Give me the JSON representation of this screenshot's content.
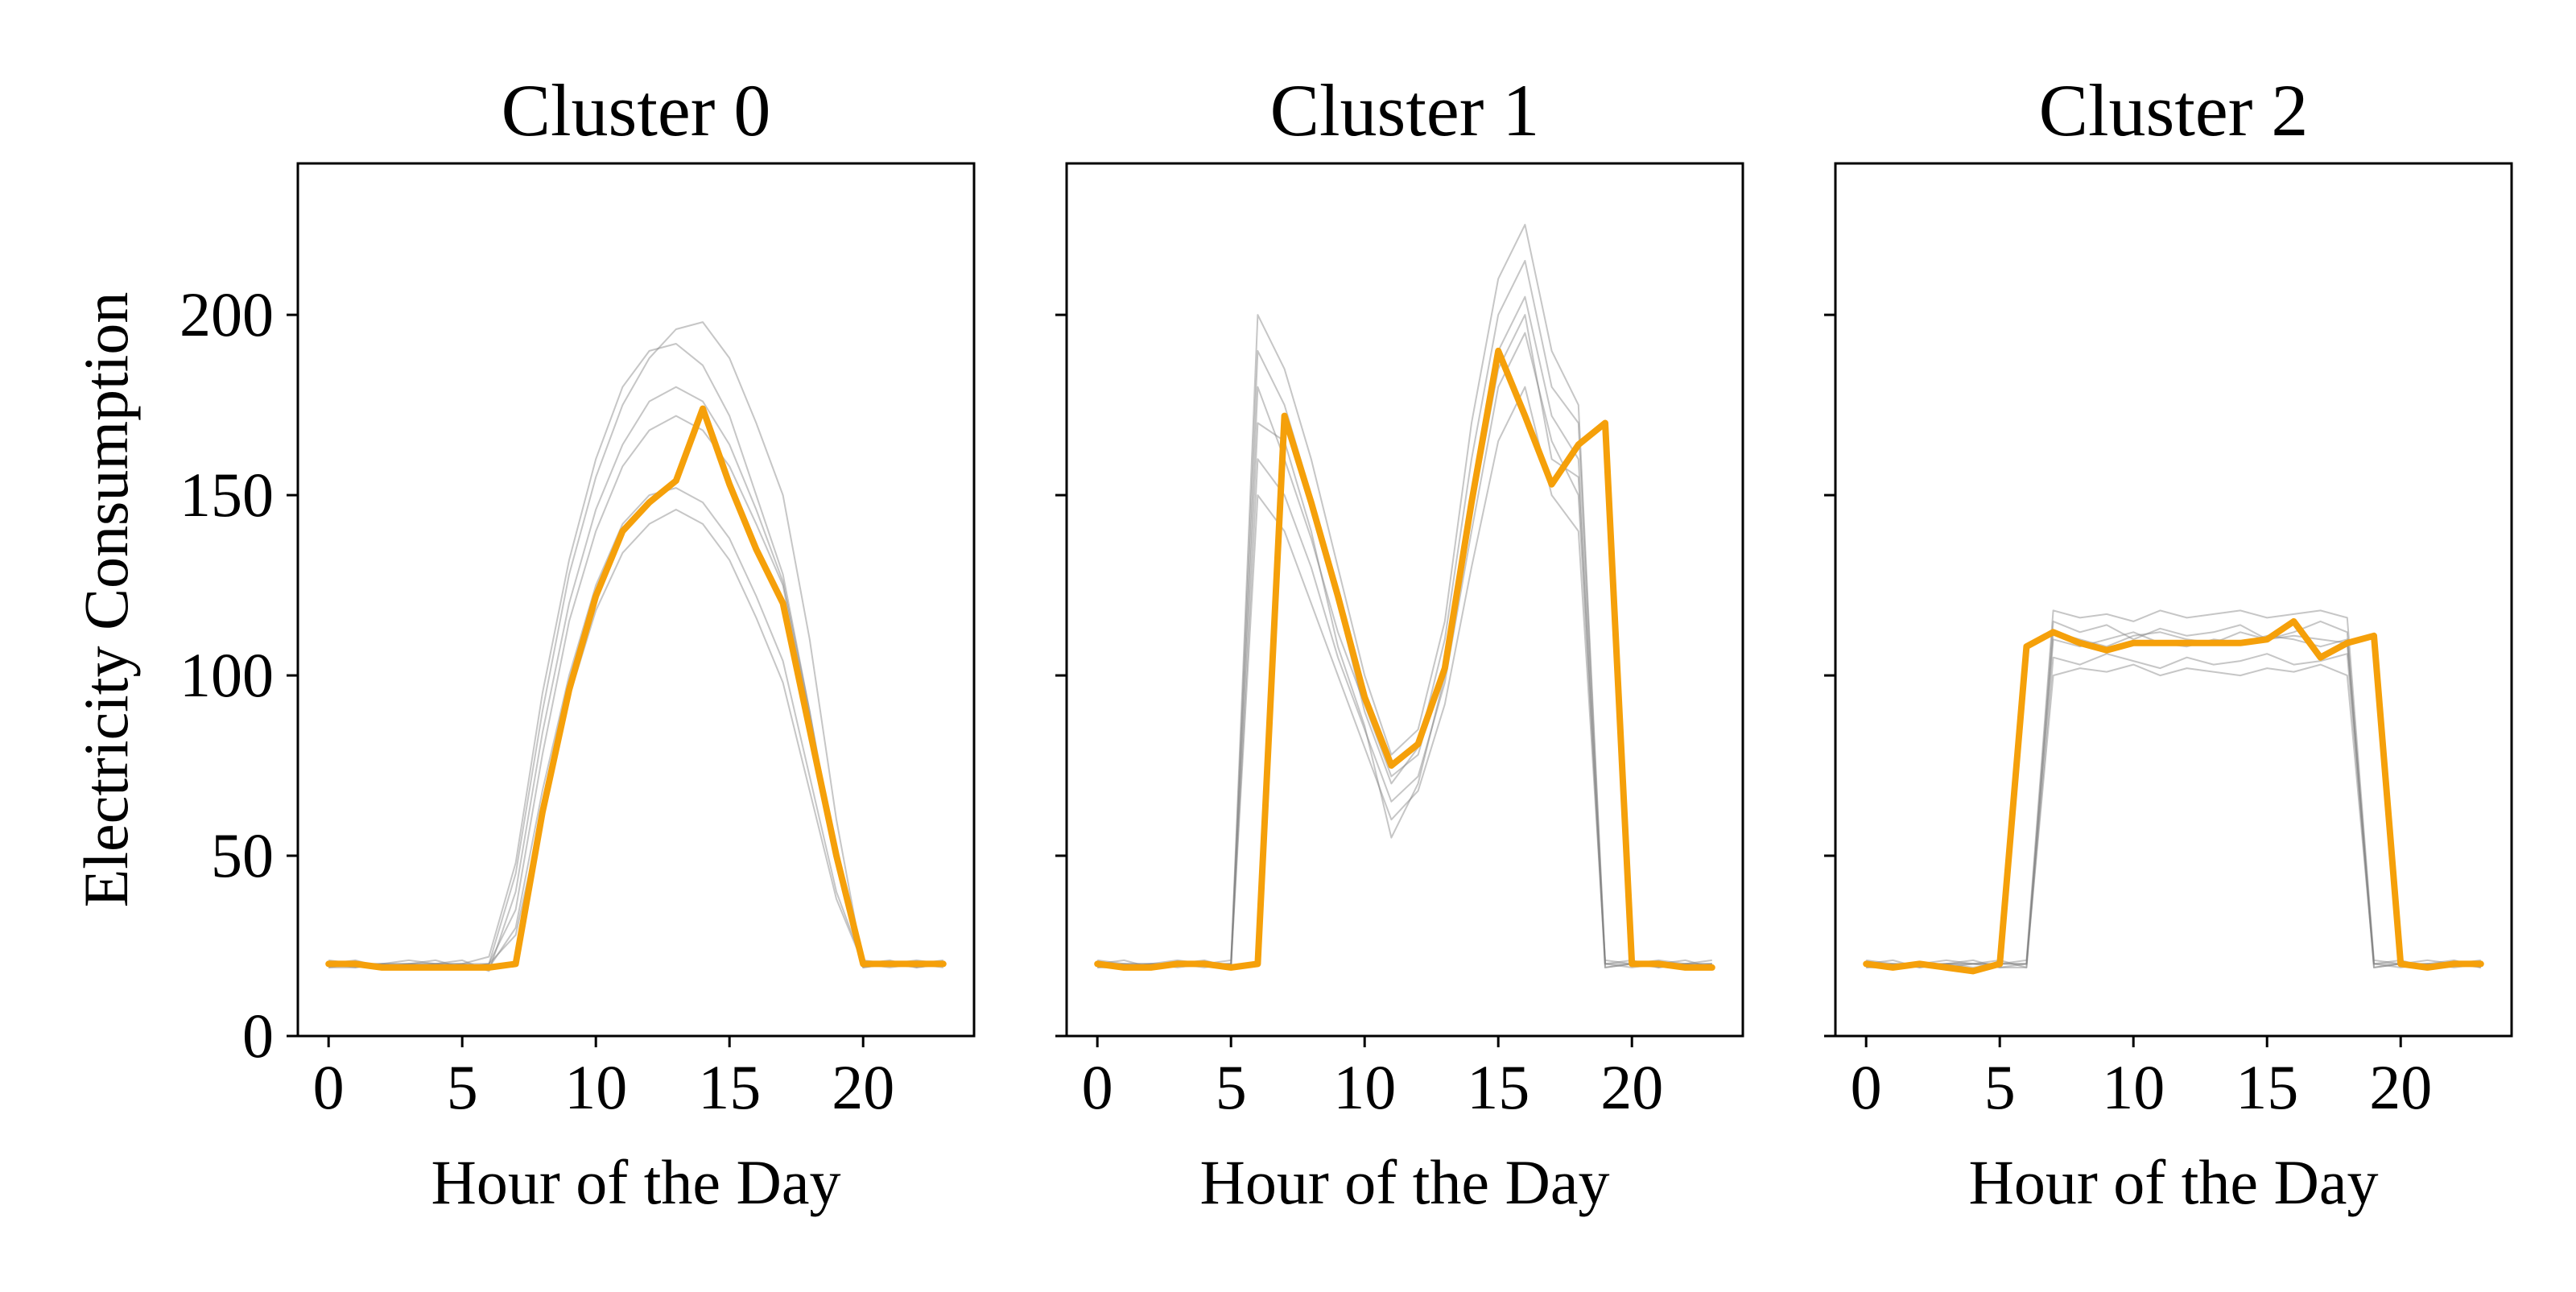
{
  "chart_data": [
    {
      "type": "line",
      "title": "Cluster 0",
      "xlabel": "Hour of the Day",
      "ylabel": "Electricity Consumption",
      "xlim": [
        -1.15,
        24.15
      ],
      "ylim": [
        0,
        242
      ],
      "xticks": [
        0,
        5,
        10,
        15,
        20
      ],
      "yticks": [
        0,
        50,
        100,
        150,
        200
      ],
      "grid": false,
      "line_color": "#F5A00A",
      "background_color": "#808080",
      "x": [
        0,
        1,
        2,
        3,
        4,
        5,
        6,
        7,
        8,
        9,
        10,
        11,
        12,
        13,
        14,
        15,
        16,
        17,
        18,
        19,
        20,
        21,
        22,
        23
      ],
      "series": [
        {
          "values": [
            20,
            20,
            19,
            19,
            19,
            19,
            19,
            20,
            62,
            96,
            122,
            140,
            148,
            154,
            174,
            153,
            135,
            120,
            85,
            50,
            20,
            20,
            20,
            20
          ]
        }
      ],
      "background_series": [
        [
          20,
          20,
          19,
          20,
          20,
          20,
          20,
          45,
          90,
          128,
          155,
          175,
          188,
          196,
          198,
          188,
          170,
          150,
          110,
          60,
          20,
          20,
          19,
          20
        ],
        [
          19,
          20,
          20,
          19,
          20,
          19,
          20,
          35,
          78,
          115,
          140,
          158,
          168,
          172,
          168,
          158,
          142,
          125,
          88,
          48,
          19,
          20,
          20,
          19
        ],
        [
          20,
          19,
          20,
          20,
          19,
          20,
          19,
          30,
          68,
          100,
          125,
          142,
          150,
          152,
          148,
          138,
          122,
          104,
          72,
          40,
          20,
          19,
          20,
          20
        ],
        [
          21,
          20,
          20,
          21,
          20,
          20,
          22,
          48,
          95,
          132,
          160,
          180,
          190,
          192,
          186,
          172,
          150,
          128,
          90,
          50,
          21,
          20,
          21,
          20
        ],
        [
          20,
          21,
          19,
          20,
          21,
          19,
          20,
          28,
          62,
          94,
          118,
          134,
          142,
          146,
          142,
          132,
          116,
          98,
          68,
          38,
          20,
          21,
          19,
          20
        ],
        [
          19,
          19,
          20,
          20,
          20,
          21,
          18,
          40,
          84,
          120,
          146,
          164,
          176,
          180,
          176,
          164,
          146,
          126,
          90,
          48,
          19,
          20,
          20,
          21
        ]
      ]
    },
    {
      "type": "line",
      "title": "Cluster 1",
      "xlabel": "Hour of the Day",
      "ylabel": "",
      "xlim": [
        -1.15,
        24.15
      ],
      "ylim": [
        0,
        242
      ],
      "xticks": [
        0,
        5,
        10,
        15,
        20
      ],
      "yticks": [
        0,
        50,
        100,
        150,
        200
      ],
      "grid": false,
      "line_color": "#F5A00A",
      "background_color": "#808080",
      "x": [
        0,
        1,
        2,
        3,
        4,
        5,
        6,
        7,
        8,
        9,
        10,
        11,
        12,
        13,
        14,
        15,
        16,
        17,
        18,
        19,
        20,
        21,
        22,
        23
      ],
      "series": [
        {
          "values": [
            20,
            19,
            19,
            20,
            20,
            19,
            20,
            172,
            148,
            122,
            94,
            75,
            81,
            102,
            148,
            190,
            172,
            153,
            164,
            170,
            20,
            20,
            19,
            19
          ]
        }
      ],
      "background_series": [
        [
          20,
          20,
          19,
          20,
          20,
          20,
          190,
          175,
          150,
          120,
          90,
          70,
          80,
          110,
          160,
          200,
          215,
          180,
          170,
          20,
          20,
          19,
          20,
          20
        ],
        [
          19,
          20,
          20,
          19,
          20,
          19,
          160,
          150,
          130,
          105,
          85,
          65,
          72,
          98,
          140,
          180,
          195,
          165,
          150,
          19,
          20,
          20,
          19,
          20
        ],
        [
          20,
          19,
          20,
          20,
          19,
          20,
          200,
          185,
          160,
          130,
          100,
          78,
          85,
          115,
          170,
          210,
          225,
          190,
          175,
          20,
          19,
          20,
          20,
          19
        ],
        [
          21,
          20,
          20,
          21,
          20,
          20,
          150,
          140,
          120,
          100,
          80,
          60,
          68,
          92,
          130,
          165,
          180,
          150,
          140,
          21,
          20,
          21,
          20,
          20
        ],
        [
          20,
          21,
          19,
          20,
          21,
          19,
          180,
          160,
          138,
          112,
          92,
          72,
          78,
          104,
          150,
          190,
          205,
          172,
          160,
          20,
          21,
          19,
          20,
          21
        ],
        [
          19,
          19,
          20,
          20,
          20,
          21,
          170,
          165,
          140,
          108,
          86,
          55,
          70,
          100,
          145,
          185,
          200,
          160,
          155,
          19,
          20,
          20,
          21,
          19
        ]
      ]
    },
    {
      "type": "line",
      "title": "Cluster 2",
      "xlabel": "Hour of the Day",
      "ylabel": "",
      "xlim": [
        -1.15,
        24.15
      ],
      "ylim": [
        0,
        242
      ],
      "xticks": [
        0,
        5,
        10,
        15,
        20
      ],
      "yticks": [
        0,
        50,
        100,
        150,
        200
      ],
      "grid": false,
      "line_color": "#F5A00A",
      "background_color": "#808080",
      "x": [
        0,
        1,
        2,
        3,
        4,
        5,
        6,
        7,
        8,
        9,
        10,
        11,
        12,
        13,
        14,
        15,
        16,
        17,
        18,
        19,
        20,
        21,
        22,
        23
      ],
      "series": [
        {
          "values": [
            20,
            19,
            20,
            19,
            18,
            20,
            108,
            112,
            109,
            107,
            109,
            109,
            109,
            109,
            109,
            110,
            115,
            105,
            109,
            111,
            20,
            19,
            20,
            20
          ]
        }
      ],
      "background_series": [
        [
          20,
          20,
          19,
          20,
          20,
          20,
          20,
          115,
          112,
          114,
          110,
          113,
          111,
          112,
          114,
          110,
          112,
          115,
          112,
          20,
          20,
          19,
          20,
          20
        ],
        [
          19,
          20,
          20,
          19,
          20,
          19,
          19,
          105,
          103,
          106,
          104,
          102,
          105,
          103,
          104,
          106,
          103,
          104,
          106,
          19,
          20,
          20,
          19,
          20
        ],
        [
          20,
          19,
          20,
          20,
          19,
          20,
          20,
          110,
          108,
          110,
          112,
          109,
          108,
          110,
          109,
          111,
          110,
          108,
          110,
          20,
          19,
          20,
          20,
          19
        ],
        [
          21,
          20,
          20,
          21,
          20,
          20,
          21,
          118,
          116,
          117,
          115,
          118,
          116,
          117,
          118,
          116,
          117,
          118,
          116,
          21,
          20,
          21,
          20,
          20
        ],
        [
          20,
          21,
          19,
          20,
          21,
          19,
          20,
          100,
          102,
          101,
          103,
          100,
          102,
          101,
          100,
          102,
          101,
          103,
          100,
          20,
          21,
          19,
          20,
          21
        ],
        [
          19,
          19,
          20,
          20,
          20,
          21,
          19,
          112,
          110,
          108,
          111,
          112,
          110,
          109,
          112,
          110,
          111,
          110,
          109,
          19,
          20,
          20,
          21,
          19
        ]
      ]
    }
  ]
}
